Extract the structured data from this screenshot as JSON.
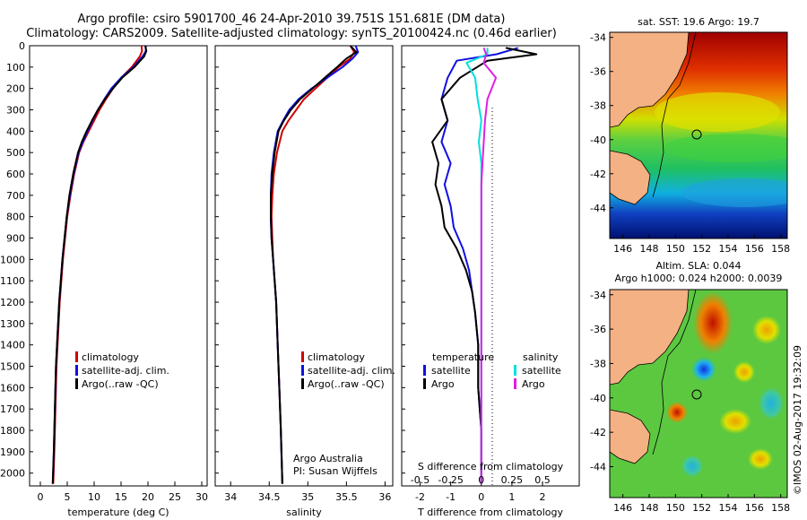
{
  "header": {
    "line1": "Argo profile: csiro 5901700_46 24-Apr-2010 39.751S 151.681E (DM data)",
    "line2": "Climatology: CARS2009. Satellite-adjusted climatology: synTS_20100424.nc (0.46d earlier)"
  },
  "colors": {
    "climatology": "#d00000",
    "satellite": "#1010e0",
    "argo": "#000000",
    "sal_satellite": "#00e0e0",
    "sal_argo": "#e020e0"
  },
  "depth_axis": {
    "ticks": [
      "0",
      "100",
      "200",
      "300",
      "400",
      "500",
      "600",
      "700",
      "800",
      "900",
      "1000",
      "1100",
      "1200",
      "1300",
      "1400",
      "1500",
      "1600",
      "1700",
      "1800",
      "1900",
      "2000"
    ],
    "range": [
      0,
      2060
    ]
  },
  "chart_data": [
    {
      "type": "line",
      "name": "temperature",
      "xlabel": "temperature (deg C)",
      "xticks": [
        "0",
        "5",
        "10",
        "15",
        "20",
        "25",
        "30"
      ],
      "xlim": [
        -2,
        31
      ],
      "legend": [
        "climatology",
        "satellite-adj. clim.",
        "Argo(..raw -QC)"
      ],
      "series": [
        {
          "key": "climatology",
          "x": [
            18.8,
            18.9,
            18.5,
            17.0,
            15.0,
            13.5,
            12.2,
            11.0,
            10.0,
            9.0,
            8.0,
            7.2,
            6.3,
            5.6,
            5.0,
            4.6,
            4.2,
            3.9,
            3.6,
            3.4,
            3.2,
            3.0,
            2.8,
            2.6,
            2.4
          ],
          "y": [
            0,
            25,
            50,
            100,
            150,
            200,
            250,
            300,
            350,
            400,
            450,
            500,
            600,
            700,
            800,
            900,
            1000,
            1100,
            1200,
            1300,
            1400,
            1500,
            1700,
            1900,
            2050
          ]
        },
        {
          "key": "satellite",
          "x": [
            19.6,
            19.6,
            19.0,
            17.3,
            15.0,
            13.2,
            11.9,
            10.7,
            9.7,
            8.8,
            7.9,
            7.1,
            6.2,
            5.5,
            4.9,
            4.5,
            4.1,
            3.8,
            3.5,
            3.3,
            3.1,
            2.9,
            2.7,
            2.5,
            2.3
          ],
          "y": [
            0,
            25,
            50,
            100,
            150,
            200,
            250,
            300,
            350,
            400,
            450,
            500,
            600,
            700,
            800,
            900,
            1000,
            1100,
            1200,
            1300,
            1400,
            1500,
            1700,
            1900,
            2050
          ]
        },
        {
          "key": "argo",
          "x": [
            19.5,
            19.7,
            19.3,
            17.5,
            15.2,
            13.5,
            12.0,
            10.7,
            9.6,
            8.6,
            7.7,
            7.0,
            6.1,
            5.4,
            4.9,
            4.5,
            4.1,
            3.8,
            3.5,
            3.3,
            3.1,
            2.9,
            2.7,
            2.5,
            2.3
          ],
          "y": [
            0,
            25,
            50,
            100,
            150,
            200,
            250,
            300,
            350,
            400,
            450,
            500,
            600,
            700,
            800,
            900,
            1000,
            1100,
            1200,
            1300,
            1400,
            1500,
            1700,
            1900,
            2050
          ]
        }
      ]
    },
    {
      "type": "line",
      "name": "salinity",
      "xlabel": "salinity",
      "xticks": [
        "34",
        "34.5",
        "35",
        "35.5",
        "36"
      ],
      "xlim": [
        33.8,
        36.1
      ],
      "legend": [
        "climatology",
        "satellite-adj. clim.",
        "Argo(..raw -QC)"
      ],
      "annotation": [
        "Argo Australia",
        "PI: Susan Wijffels"
      ],
      "series": [
        {
          "key": "climatology",
          "x": [
            35.55,
            35.6,
            35.55,
            35.4,
            35.25,
            35.1,
            34.95,
            34.85,
            34.75,
            34.67,
            34.6,
            34.56,
            34.54,
            34.53,
            34.54,
            34.55,
            34.57,
            34.59,
            34.61,
            34.63,
            34.65,
            34.67
          ],
          "y": [
            0,
            30,
            60,
            100,
            150,
            200,
            250,
            300,
            350,
            400,
            500,
            600,
            700,
            800,
            900,
            1000,
            1100,
            1200,
            1400,
            1600,
            1800,
            2050
          ]
        },
        {
          "key": "satellite",
          "x": [
            35.62,
            35.65,
            35.58,
            35.45,
            35.25,
            35.05,
            34.88,
            34.76,
            34.68,
            34.61,
            34.56,
            34.53,
            34.52,
            34.52,
            34.53,
            34.55,
            34.57,
            34.59,
            34.61,
            34.63,
            34.65,
            34.67
          ],
          "y": [
            0,
            30,
            60,
            100,
            150,
            200,
            250,
            300,
            350,
            400,
            500,
            600,
            700,
            800,
            900,
            1000,
            1100,
            1200,
            1400,
            1600,
            1800,
            2050
          ]
        },
        {
          "key": "argo",
          "x": [
            35.55,
            35.63,
            35.5,
            35.38,
            35.22,
            35.06,
            34.9,
            34.78,
            34.69,
            34.62,
            34.57,
            34.54,
            34.52,
            34.52,
            34.53,
            34.55,
            34.57,
            34.59,
            34.61,
            34.63,
            34.65,
            34.67
          ],
          "y": [
            0,
            30,
            60,
            100,
            150,
            200,
            250,
            300,
            350,
            400,
            500,
            600,
            700,
            800,
            900,
            1000,
            1100,
            1200,
            1400,
            1600,
            1800,
            2050
          ]
        }
      ]
    },
    {
      "type": "line",
      "name": "differences",
      "xlabel": "T difference from climatology",
      "xticks": [
        "-2",
        "-1",
        "0",
        "1",
        "2"
      ],
      "xlim": [
        -2.6,
        3.2
      ],
      "top_label": "S difference from climatology",
      "top_ticks": [
        "-0.5",
        "-0.25",
        "0",
        "0.25",
        "0.5"
      ],
      "top_tick_values": [
        -0.5,
        -0.25,
        0,
        0.25,
        0.5
      ],
      "legend_left_title": "temperature",
      "legend_right_title": "salinity",
      "legend": [
        "satellite",
        "Argo",
        "satellite",
        "Argo"
      ],
      "series": [
        {
          "key": "temp_satellite",
          "x": [
            1.2,
            0.5,
            -0.8,
            -1.1,
            -1.3,
            -1.1,
            -1.3,
            -1.0,
            -1.2,
            -1.0,
            -0.9,
            -0.6,
            -0.4,
            -0.3,
            -0.2,
            -0.1,
            -0.1,
            0.0,
            0.0,
            0.0
          ],
          "y": [
            10,
            40,
            70,
            150,
            250,
            350,
            450,
            550,
            650,
            750,
            850,
            950,
            1050,
            1150,
            1250,
            1400,
            1600,
            1800,
            2000,
            2050
          ]
        },
        {
          "key": "temp_argo",
          "x": [
            0.8,
            1.8,
            0.2,
            -0.7,
            -1.3,
            -1.1,
            -1.6,
            -1.4,
            -1.5,
            -1.3,
            -1.2,
            -0.8,
            -0.5,
            -0.3,
            -0.2,
            -0.1,
            -0.1,
            0.0,
            0.0,
            0.0
          ],
          "y": [
            10,
            40,
            70,
            150,
            250,
            350,
            450,
            550,
            650,
            750,
            850,
            950,
            1050,
            1150,
            1250,
            1400,
            1600,
            1800,
            2000,
            2050
          ]
        },
        {
          "key": "sal_satellite",
          "x": [
            0.05,
            0.05,
            -0.12,
            -0.05,
            -0.03,
            0.0,
            -0.02,
            0.0,
            0.0,
            0.0,
            0.0,
            0.0,
            0.0,
            0.0,
            0.0
          ],
          "y": [
            10,
            40,
            80,
            150,
            250,
            350,
            450,
            550,
            650,
            800,
            1000,
            1200,
            1500,
            1800,
            2050
          ]
        },
        {
          "key": "sal_argo",
          "x": [
            0.02,
            0.04,
            0.02,
            0.12,
            0.05,
            0.03,
            0.02,
            0.01,
            0.0,
            0.0,
            0.0,
            0.0,
            0.0,
            0.0,
            0.0
          ],
          "y": [
            10,
            40,
            80,
            150,
            250,
            350,
            450,
            550,
            650,
            800,
            1000,
            1200,
            1500,
            1800,
            2050
          ]
        }
      ]
    },
    {
      "type": "heatmap",
      "name": "sst_map",
      "title": "sat. SST: 19.6 Argo: 19.7",
      "xticks": [
        "146",
        "148",
        "150",
        "152",
        "154",
        "156",
        "158"
      ],
      "yticks": [
        "-34",
        "-36",
        "-38",
        "-40",
        "-42",
        "-44"
      ],
      "xlim": [
        145,
        158.5
      ],
      "ylim": [
        -45.8,
        -33.7
      ],
      "marker": {
        "lon": 151.68,
        "lat": -39.75
      }
    },
    {
      "type": "heatmap",
      "name": "sla_map",
      "title_line1": "Altim. SLA: 0.044",
      "title_line2": "Argo h1000: 0.024 h2000: 0.0039",
      "xticks": [
        "146",
        "148",
        "150",
        "152",
        "154",
        "156",
        "158"
      ],
      "yticks": [
        "-34",
        "-36",
        "-38",
        "-40",
        "-42",
        "-44"
      ],
      "xlim": [
        145,
        158.5
      ],
      "ylim": [
        -45.8,
        -33.7
      ],
      "marker": {
        "lon": 151.68,
        "lat": -39.75
      }
    }
  ],
  "footer_vertical": "©IMOS 02-Aug-2017 19:32:09"
}
